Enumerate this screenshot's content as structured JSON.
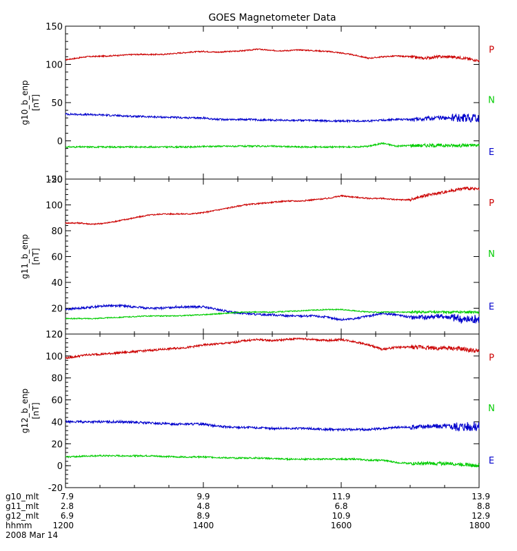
{
  "chart_data": {
    "type": "line",
    "title": "GOES Magnetometer Data",
    "x_range": [
      1200,
      1800
    ],
    "panels": [
      {
        "ylabel": "g10_b_enp",
        "yunit": "[nT]",
        "ylim": [
          -50,
          150
        ],
        "yticks": [
          "-50",
          "0",
          "50",
          "100",
          "150"
        ],
        "legend": [
          {
            "label": "P",
            "color": "#cc0000"
          },
          {
            "label": "N",
            "color": "#00cc00"
          },
          {
            "label": "E",
            "color": "#0000cc"
          }
        ],
        "series": [
          {
            "name": "P",
            "color": "#cc0000",
            "noise": 0.8,
            "x": [
              1200,
              1230,
              1260,
              1300,
              1340,
              1380,
              1400,
              1420,
              1440,
              1460,
              1480,
              1500,
              1520,
              1540,
              1560,
              1580,
              1600,
              1620,
              1640,
              1660,
              1680,
              1700,
              1720,
              1740,
              1760,
              1780,
              1800
            ],
            "y": [
              106,
              110,
              111,
              113,
              113,
              116,
              117,
              116,
              117,
              118,
              120,
              118,
              118,
              119,
              118,
              117,
              115,
              112,
              108,
              110,
              111,
              110,
              108,
              110,
              110,
              108,
              105
            ]
          },
          {
            "name": "E",
            "color": "#0000cc",
            "noise": 1.2,
            "x": [
              1200,
              1250,
              1300,
              1340,
              1380,
              1400,
              1420,
              1440,
              1460,
              1500,
              1540,
              1580,
              1600,
              1620,
              1640,
              1660,
              1680,
              1700,
              1720,
              1740,
              1760,
              1780,
              1800
            ],
            "y": [
              35,
              34,
              32,
              31,
              30,
              30,
              28,
              28,
              28,
              27,
              27,
              26,
              26,
              26,
              26,
              27,
              28,
              28,
              29,
              30,
              30,
              30,
              29
            ]
          },
          {
            "name": "N",
            "color": "#00cc00",
            "noise": 1.0,
            "x": [
              1200,
              1250,
              1300,
              1340,
              1380,
              1420,
              1460,
              1500,
              1540,
              1580,
              1600,
              1620,
              1640,
              1660,
              1680,
              1700,
              1720,
              1740,
              1760,
              1780,
              1800
            ],
            "y": [
              -8,
              -8,
              -8,
              -8,
              -8,
              -7,
              -7,
              -7,
              -8,
              -8,
              -8,
              -8,
              -7,
              -3,
              -7,
              -6,
              -6,
              -6,
              -6,
              -6,
              -6
            ]
          }
        ]
      },
      {
        "ylabel": "g11_b_enp",
        "yunit": "[nT]",
        "ylim": [
          0,
          120
        ],
        "yticks": [
          "0",
          "20",
          "40",
          "60",
          "80",
          "100",
          "120"
        ],
        "legend": [
          {
            "label": "P",
            "color": "#cc0000"
          },
          {
            "label": "N",
            "color": "#00cc00"
          },
          {
            "label": "E",
            "color": "#0000cc"
          }
        ],
        "series": [
          {
            "name": "P",
            "color": "#cc0000",
            "noise": 0.5,
            "x": [
              1200,
              1220,
              1240,
              1260,
              1280,
              1300,
              1320,
              1340,
              1360,
              1380,
              1400,
              1420,
              1440,
              1460,
              1480,
              1500,
              1520,
              1540,
              1560,
              1580,
              1600,
              1620,
              1640,
              1660,
              1680,
              1700,
              1720,
              1740,
              1760,
              1780,
              1800
            ],
            "y": [
              86,
              86,
              85,
              86,
              88,
              90,
              92,
              93,
              93,
              93,
              94,
              96,
              98,
              100,
              101,
              102,
              103,
              103,
              104,
              105,
              107,
              106,
              105,
              105,
              104,
              104,
              107,
              109,
              111,
              113,
              112
            ]
          },
          {
            "name": "E",
            "color": "#0000cc",
            "noise": 0.8,
            "x": [
              1200,
              1220,
              1240,
              1260,
              1280,
              1300,
              1320,
              1340,
              1360,
              1380,
              1400,
              1420,
              1440,
              1460,
              1480,
              1500,
              1520,
              1540,
              1560,
              1580,
              1600,
              1620,
              1640,
              1660,
              1680,
              1700,
              1720,
              1740,
              1760,
              1780,
              1800
            ],
            "y": [
              19,
              20,
              21,
              22,
              22,
              21,
              20,
              20,
              21,
              21,
              21,
              19,
              17,
              16,
              15,
              15,
              14,
              14,
              14,
              13,
              11,
              12,
              14,
              16,
              15,
              13,
              13,
              14,
              13,
              11,
              12
            ]
          },
          {
            "name": "N",
            "color": "#00cc00",
            "noise": 0.4,
            "x": [
              1200,
              1240,
              1280,
              1320,
              1360,
              1400,
              1430,
              1460,
              1500,
              1540,
              1580,
              1600,
              1620,
              1640,
              1680,
              1720,
              1760,
              1800
            ],
            "y": [
              12,
              12,
              13,
              14,
              14,
              15,
              16,
              17,
              17,
              18,
              19,
              19,
              18,
              17,
              17,
              17,
              17,
              17
            ]
          }
        ]
      },
      {
        "ylabel": "g12_b_enp",
        "yunit": "[nT]",
        "ylim": [
          -20,
          120
        ],
        "yticks": [
          "-20",
          "0",
          "20",
          "40",
          "60",
          "80",
          "100",
          "120"
        ],
        "legend": [
          {
            "label": "P",
            "color": "#cc0000"
          },
          {
            "label": "N",
            "color": "#00cc00"
          },
          {
            "label": "E",
            "color": "#0000cc"
          }
        ],
        "series": [
          {
            "name": "P",
            "color": "#cc0000",
            "noise": 0.9,
            "x": [
              1200,
              1230,
              1260,
              1300,
              1340,
              1380,
              1400,
              1420,
              1440,
              1460,
              1480,
              1500,
              1520,
              1540,
              1560,
              1580,
              1600,
              1620,
              1640,
              1660,
              1680,
              1700,
              1720,
              1740,
              1760,
              1780,
              1800
            ],
            "y": [
              98,
              101,
              102,
              104,
              106,
              108,
              110,
              111,
              112,
              114,
              115,
              114,
              115,
              116,
              115,
              114,
              115,
              113,
              110,
              106,
              108,
              108,
              108,
              107,
              107,
              106,
              104
            ]
          },
          {
            "name": "E",
            "color": "#0000cc",
            "noise": 1.0,
            "x": [
              1200,
              1240,
              1280,
              1320,
              1350,
              1380,
              1400,
              1420,
              1440,
              1460,
              1500,
              1540,
              1580,
              1600,
              1620,
              1640,
              1660,
              1680,
              1700,
              1720,
              1740,
              1760,
              1780,
              1800
            ],
            "y": [
              40,
              40,
              40,
              39,
              38,
              38,
              38,
              36,
              35,
              35,
              34,
              34,
              33,
              33,
              33,
              33,
              34,
              35,
              35,
              36,
              36,
              36,
              36,
              36
            ]
          },
          {
            "name": "N",
            "color": "#00cc00",
            "noise": 0.7,
            "x": [
              1200,
              1240,
              1280,
              1320,
              1360,
              1400,
              1440,
              1480,
              1520,
              1560,
              1600,
              1620,
              1640,
              1660,
              1680,
              1700,
              1720,
              1740,
              1760,
              1780,
              1800
            ],
            "y": [
              8,
              9,
              9,
              9,
              8,
              8,
              7,
              7,
              6,
              6,
              6,
              6,
              5,
              5,
              3,
              2,
              2,
              2,
              2,
              1,
              0
            ]
          }
        ]
      }
    ],
    "footer": {
      "rows": [
        {
          "label": "g10_mlt",
          "values": [
            "7.9",
            "9.9",
            "11.9",
            "13.9"
          ]
        },
        {
          "label": "g11_mlt",
          "values": [
            "2.8",
            "4.8",
            "6.8",
            "8.8"
          ]
        },
        {
          "label": "g12_mlt",
          "values": [
            "6.9",
            "8.9",
            "10.9",
            "12.9"
          ]
        },
        {
          "label": "hhmm",
          "values": [
            "1200",
            "1400",
            "1600",
            "1800"
          ]
        }
      ],
      "date": "2008 Mar 14"
    }
  }
}
